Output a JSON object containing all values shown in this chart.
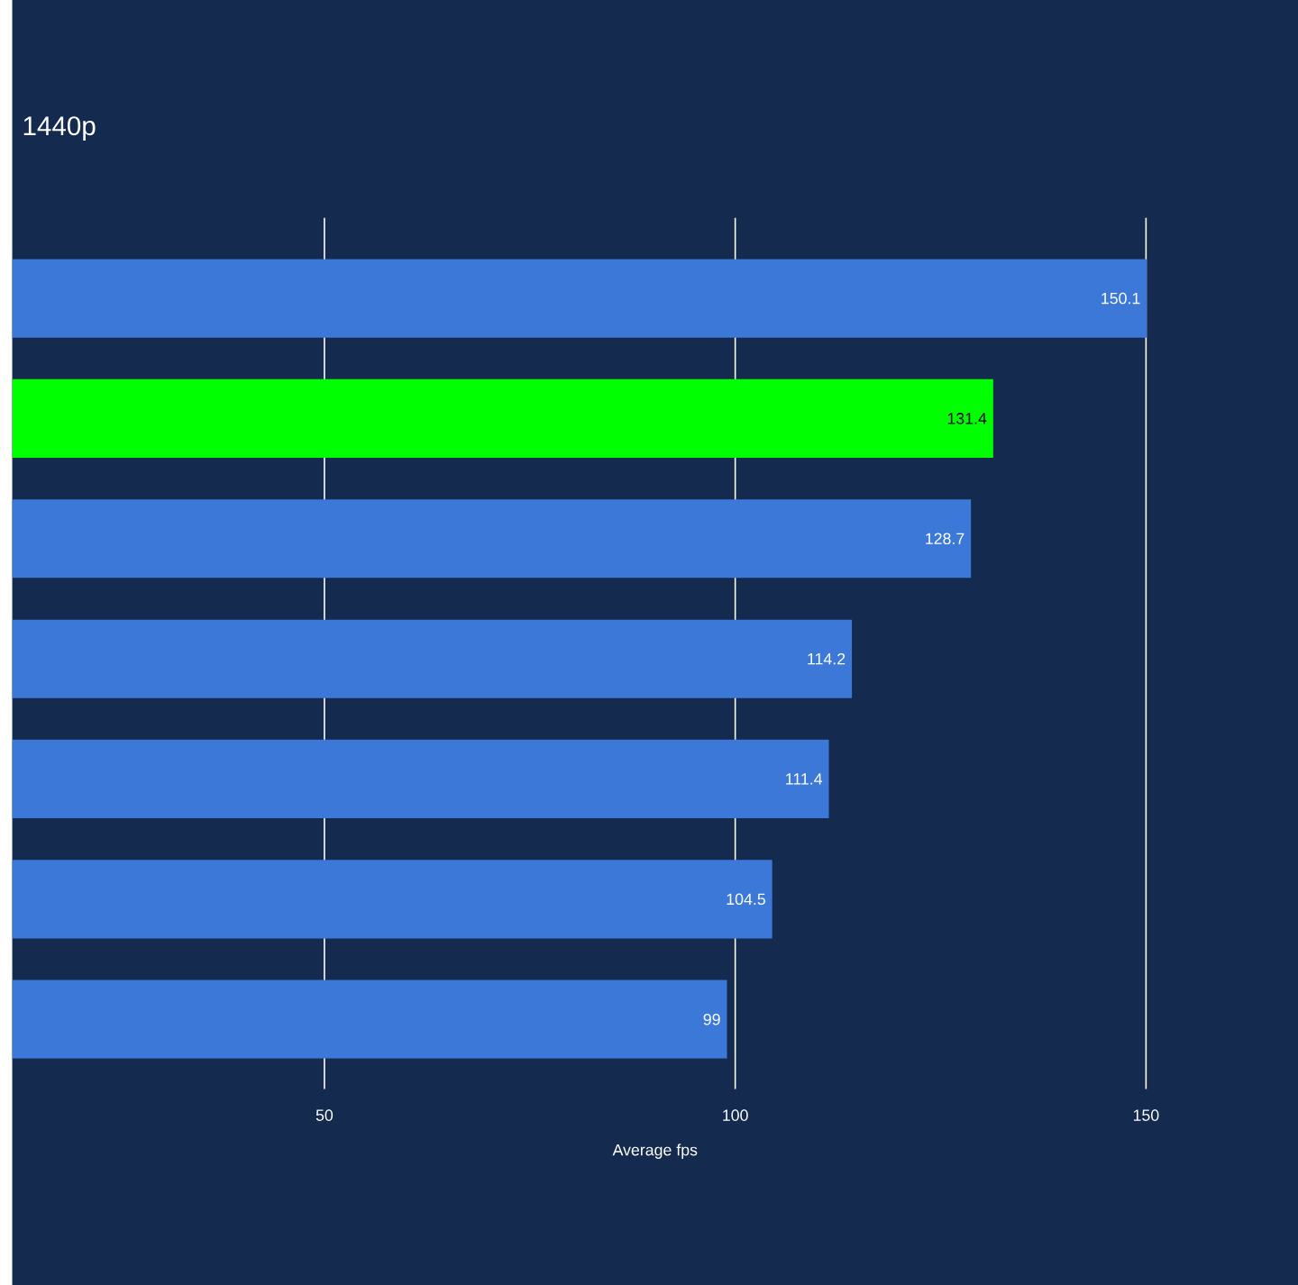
{
  "chart_data": {
    "type": "bar",
    "orientation": "horizontal",
    "title": "1440p",
    "xlabel": "Average fps",
    "categories": [
      null,
      null,
      null,
      null,
      null,
      null,
      null
    ],
    "values": [
      150.1,
      131.4,
      128.7,
      114.2,
      111.4,
      104.5,
      99
    ],
    "colors": [
      "#3b78d8",
      "#00ff00",
      "#3b78d8",
      "#3b78d8",
      "#3b78d8",
      "#3b78d8",
      "#3b78d8"
    ],
    "xlim": [
      12,
      168.5
    ],
    "xticks": [
      50,
      100,
      150
    ],
    "grid": "x",
    "data_labels": true
  }
}
